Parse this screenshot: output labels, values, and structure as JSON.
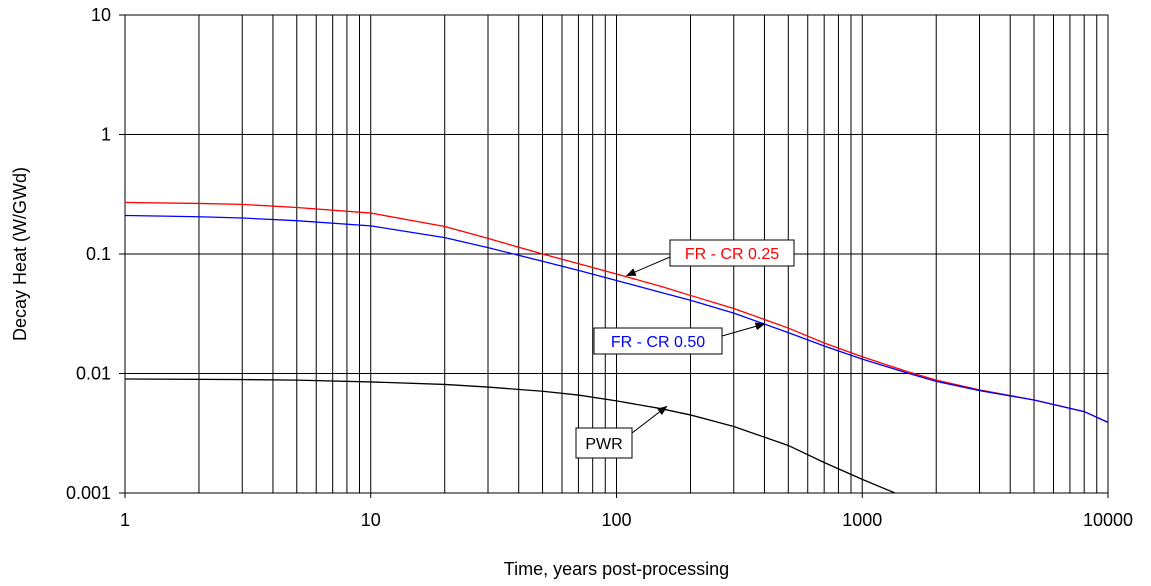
{
  "chart_data": {
    "type": "line",
    "title": "",
    "xlabel": "Time, years post-processing",
    "ylabel": "Decay Heat (W/GWd)",
    "xscale": "log",
    "yscale": "log",
    "xlim": [
      1,
      10000
    ],
    "ylim": [
      0.001,
      10
    ],
    "x_ticks": [
      "1",
      "10",
      "100",
      "1000",
      "10000"
    ],
    "y_ticks": [
      "0.001",
      "0.01",
      "0.1",
      "1",
      "10"
    ],
    "grid": true,
    "legend": "none",
    "series": [
      {
        "name": "FR - CR 0.25",
        "color": "#ff0000",
        "x": [
          1,
          2,
          3,
          5,
          10,
          20,
          30,
          50,
          70,
          100,
          150,
          200,
          300,
          500,
          700,
          1000,
          1500,
          2000,
          3000,
          5000,
          8000,
          10000
        ],
        "y": [
          0.27,
          0.265,
          0.26,
          0.245,
          0.22,
          0.17,
          0.135,
          0.1,
          0.083,
          0.068,
          0.054,
          0.045,
          0.035,
          0.024,
          0.018,
          0.0138,
          0.0105,
          0.0088,
          0.0073,
          0.006,
          0.0048,
          0.0039
        ]
      },
      {
        "name": "FR - CR 0.50",
        "color": "#0000ff",
        "x": [
          1,
          2,
          3,
          5,
          10,
          20,
          30,
          50,
          70,
          100,
          150,
          200,
          300,
          500,
          700,
          1000,
          1500,
          2000,
          3000,
          5000,
          8000,
          10000
        ],
        "y": [
          0.21,
          0.205,
          0.2,
          0.19,
          0.172,
          0.137,
          0.113,
          0.087,
          0.073,
          0.06,
          0.048,
          0.041,
          0.032,
          0.022,
          0.017,
          0.0132,
          0.0102,
          0.0086,
          0.0072,
          0.006,
          0.0048,
          0.0039
        ]
      },
      {
        "name": "PWR",
        "color": "#000000",
        "x": [
          1,
          3,
          5,
          10,
          20,
          30,
          50,
          70,
          100,
          150,
          200,
          300,
          500,
          700,
          1000,
          1500,
          1650
        ],
        "y": [
          0.009,
          0.0089,
          0.0088,
          0.0085,
          0.0081,
          0.0077,
          0.0071,
          0.0066,
          0.0059,
          0.0051,
          0.0045,
          0.0036,
          0.0025,
          0.0018,
          0.0013,
          0.00092,
          0.00086
        ]
      }
    ],
    "annotations": [
      {
        "text": "FR - CR 0.25",
        "color": "#ff0000",
        "points_to": [
          110,
          0.066
        ]
      },
      {
        "text": "FR - CR 0.50",
        "color": "#0000ff",
        "points_to": [
          400,
          0.026
        ]
      },
      {
        "text": "PWR",
        "color": "#000000",
        "points_to": [
          160,
          0.0053
        ]
      }
    ]
  }
}
